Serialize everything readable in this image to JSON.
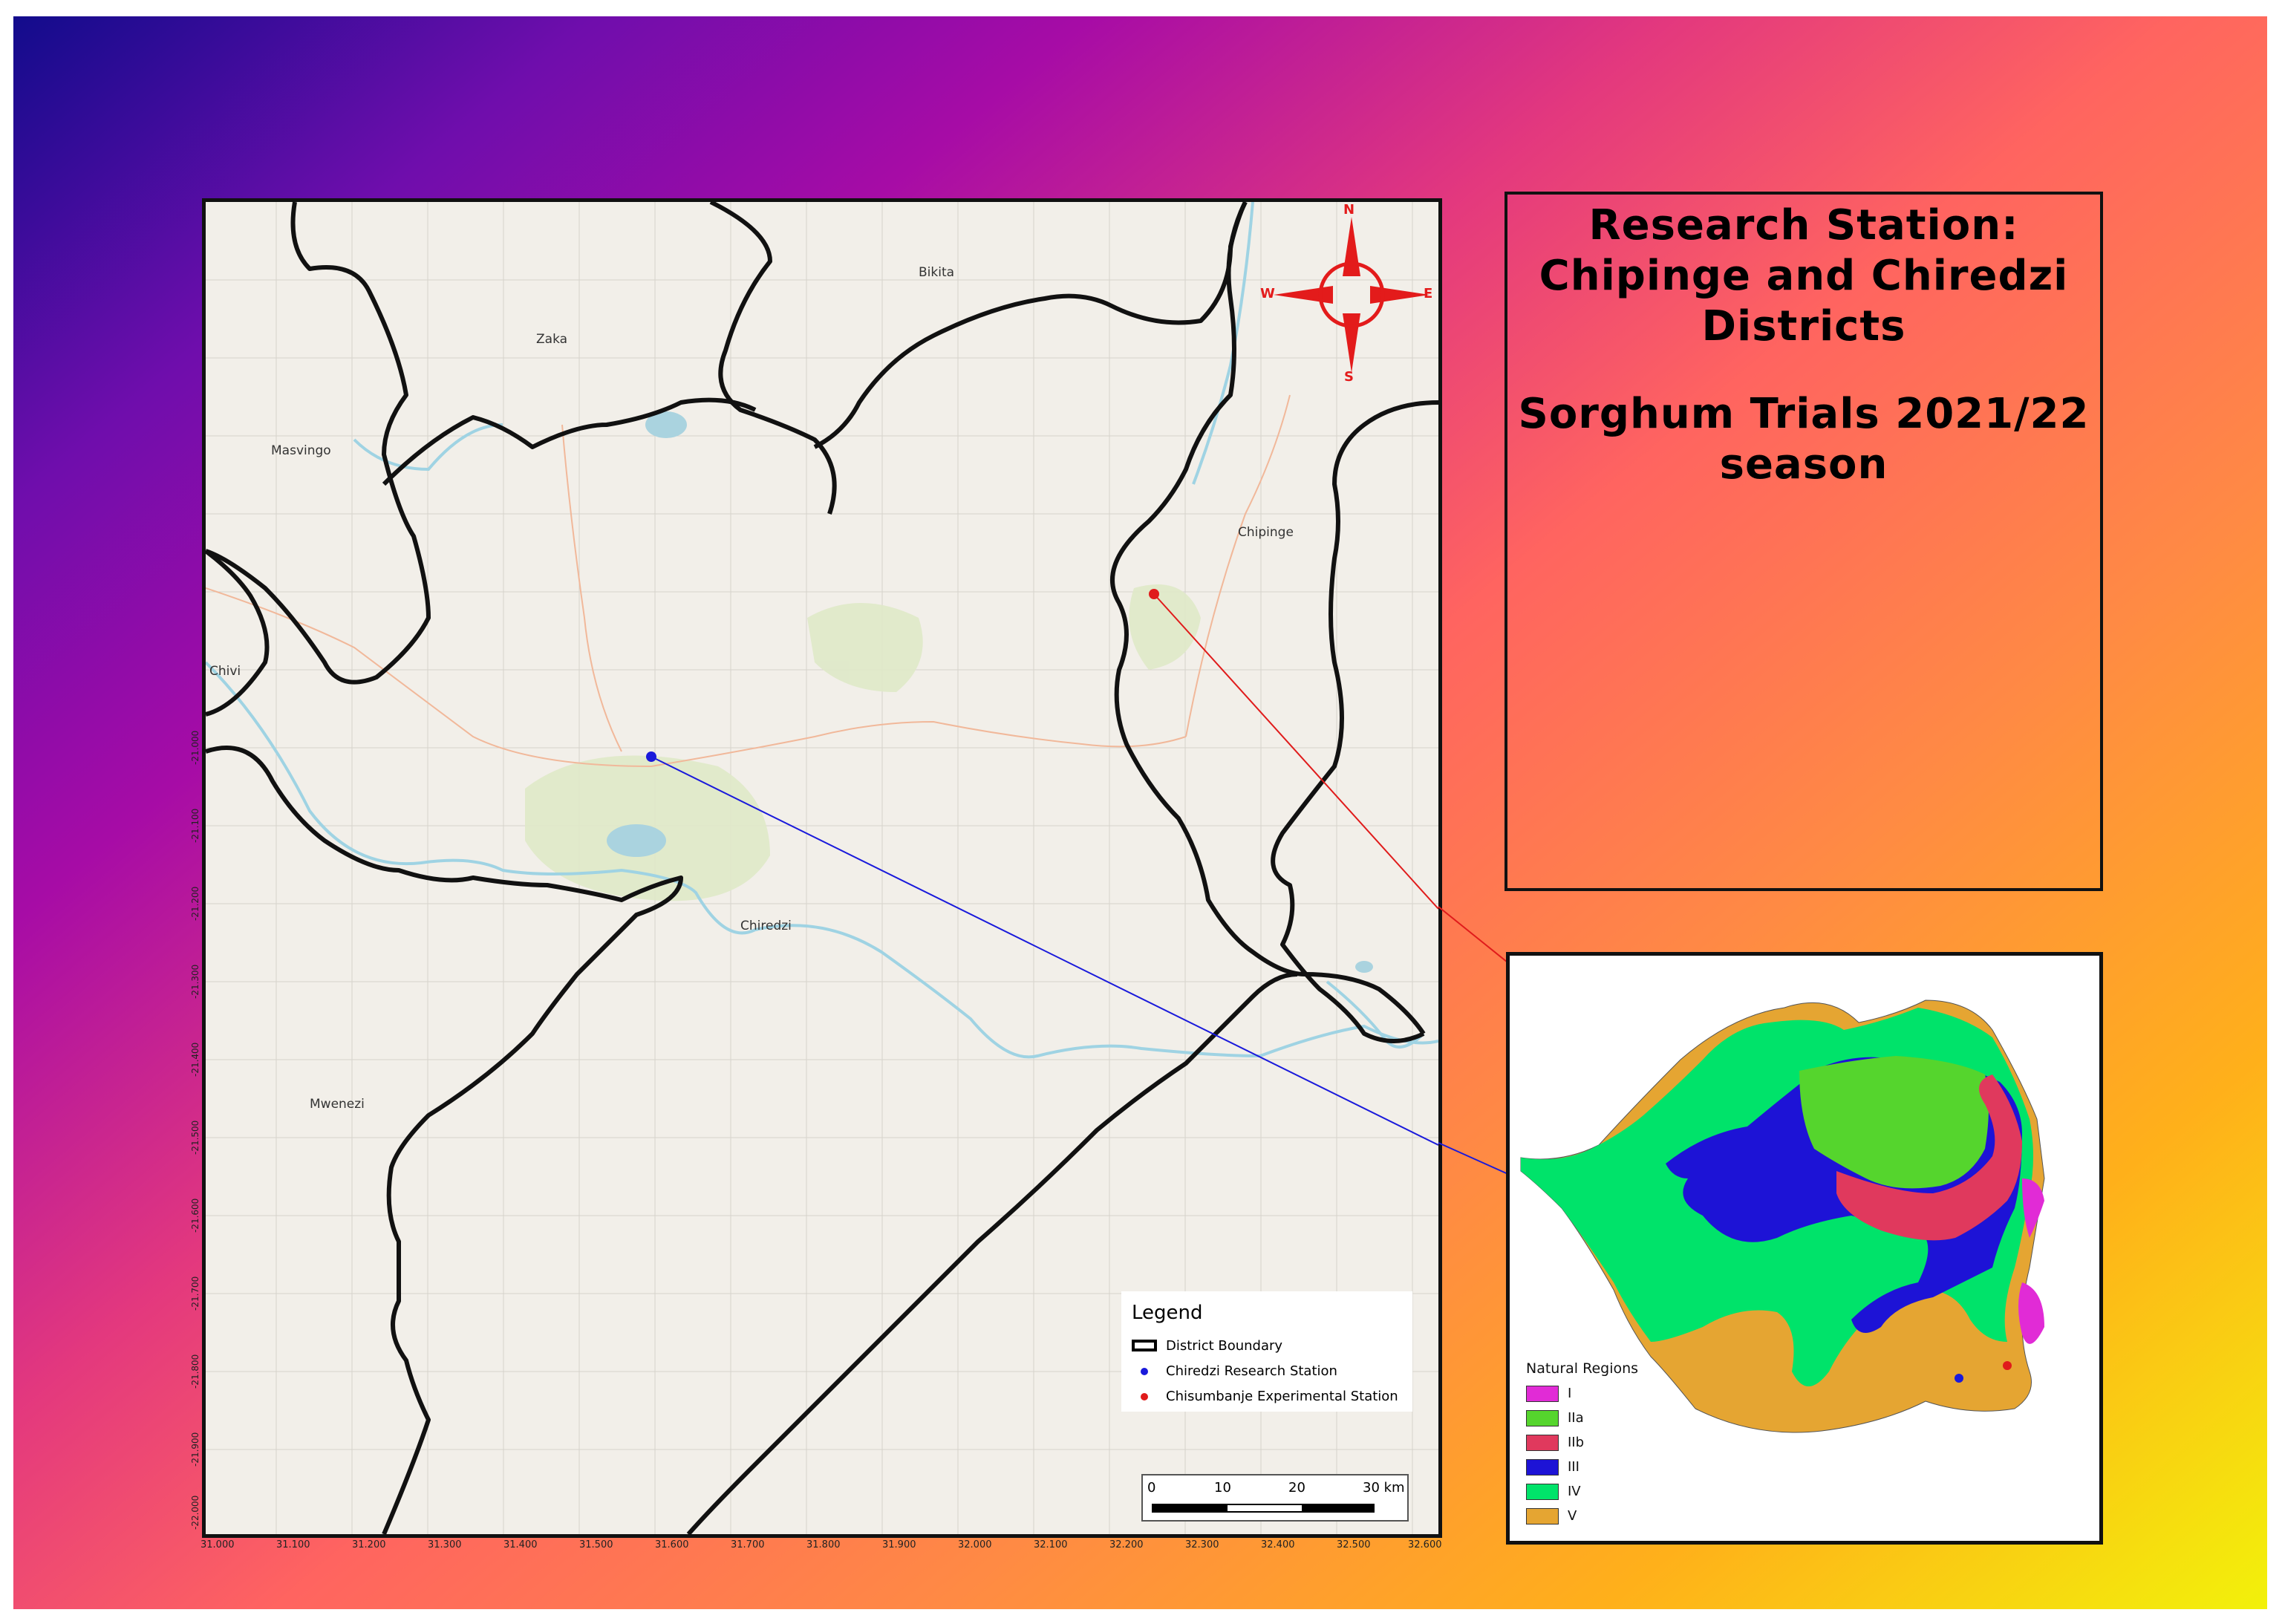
{
  "title": {
    "line1": "Research Station:",
    "line2": "Chipinge and Chiredzi",
    "line3": "Districts",
    "line4": "Sorghum Trials 2021/22",
    "line5": "season"
  },
  "map": {
    "place_names": {
      "bikita": "Bikita",
      "zaka": "Zaka",
      "masvingo": "Masvingo",
      "chivi": "Chivi",
      "chipinge": "Chipinge",
      "chiredzi": "Chiredzi",
      "mwenezi": "Mwenezi"
    },
    "x_ticks": [
      "31.000",
      "31.100",
      "31.200",
      "31.300",
      "31.400",
      "31.500",
      "31.600",
      "31.700",
      "31.800",
      "31.900",
      "32.000",
      "32.100",
      "32.200",
      "32.300",
      "32.400",
      "32.500",
      "32.600"
    ],
    "y_ticks": [
      "-21.000",
      "-21.100",
      "-21.200",
      "-21.300",
      "-21.400",
      "-21.500",
      "-21.600",
      "-21.700",
      "-21.800",
      "-21.900",
      "-22.000"
    ],
    "compass": {
      "n": "N",
      "s": "S",
      "e": "E",
      "w": "W"
    }
  },
  "legend": {
    "title": "Legend",
    "items": [
      {
        "label": "District Boundary",
        "symbol": "box",
        "color": "#000000"
      },
      {
        "label": "Chiredzi Research Station",
        "symbol": "dot",
        "color": "#1a1adb"
      },
      {
        "label": "Chisumbanje Experimental Station",
        "symbol": "dot",
        "color": "#e01b1b"
      }
    ]
  },
  "scalebar": {
    "labels": [
      "0",
      "10",
      "20",
      "30 km"
    ]
  },
  "inset": {
    "legend_title": "Natural Regions",
    "regions": [
      {
        "label": "I",
        "color": "#e12bd6"
      },
      {
        "label": "IIa",
        "color": "#55d52d"
      },
      {
        "label": "IIb",
        "color": "#e0395d"
      },
      {
        "label": "III",
        "color": "#1d13d6"
      },
      {
        "label": "IV",
        "color": "#00e36a"
      },
      {
        "label": "V",
        "color": "#e5a532"
      }
    ]
  },
  "colors": {
    "station_chiredzi": "#1a1adb",
    "station_chisumbanje": "#e01b1b"
  }
}
